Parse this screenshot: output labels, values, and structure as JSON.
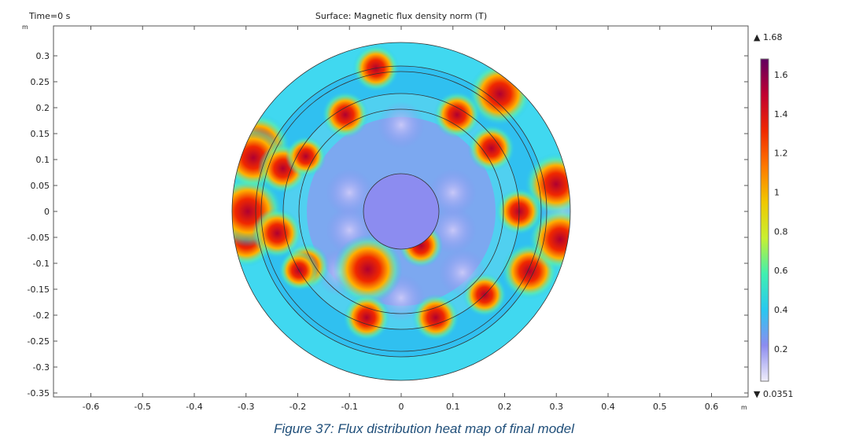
{
  "chart_data": {
    "type": "heatmap",
    "title": "Surface: Magnetic flux density norm (T)",
    "time_label": "Time=0 s",
    "xlabel": "m",
    "ylabel": "m",
    "xlim": [
      -0.67,
      0.67
    ],
    "ylim": [
      -0.36,
      0.357
    ],
    "x_ticks": [
      -0.6,
      -0.5,
      -0.4,
      -0.3,
      -0.2,
      -0.1,
      0,
      0.1,
      0.2,
      0.3,
      0.4,
      0.5,
      0.6
    ],
    "y_ticks": [
      0.3,
      0.25,
      0.2,
      0.15,
      0.1,
      0.05,
      0,
      -0.05,
      -0.1,
      -0.15,
      -0.2,
      -0.25,
      -0.3,
      -0.35
    ],
    "colorbar": {
      "max_label": "1.68",
      "min_label": "0.0351",
      "max": 1.68,
      "min": 0.0351,
      "ticks": [
        1.6,
        1.4,
        1.2,
        1,
        0.8,
        0.6,
        0.4,
        0.2
      ],
      "colors": [
        "#f0eefa",
        "#8c8cf0",
        "#28c8f0",
        "#40f0b0",
        "#c8f030",
        "#f0c800",
        "#ff7800",
        "#f02800",
        "#c00030",
        "#600060"
      ]
    },
    "geometry_m": {
      "outer_radius": 0.327,
      "stator_inner_radius": 0.28,
      "rotor_outer_radius": 0.2,
      "shaft_radius": 0.073
    }
  },
  "caption": "Figure 37: Flux distribution heat map of final model"
}
